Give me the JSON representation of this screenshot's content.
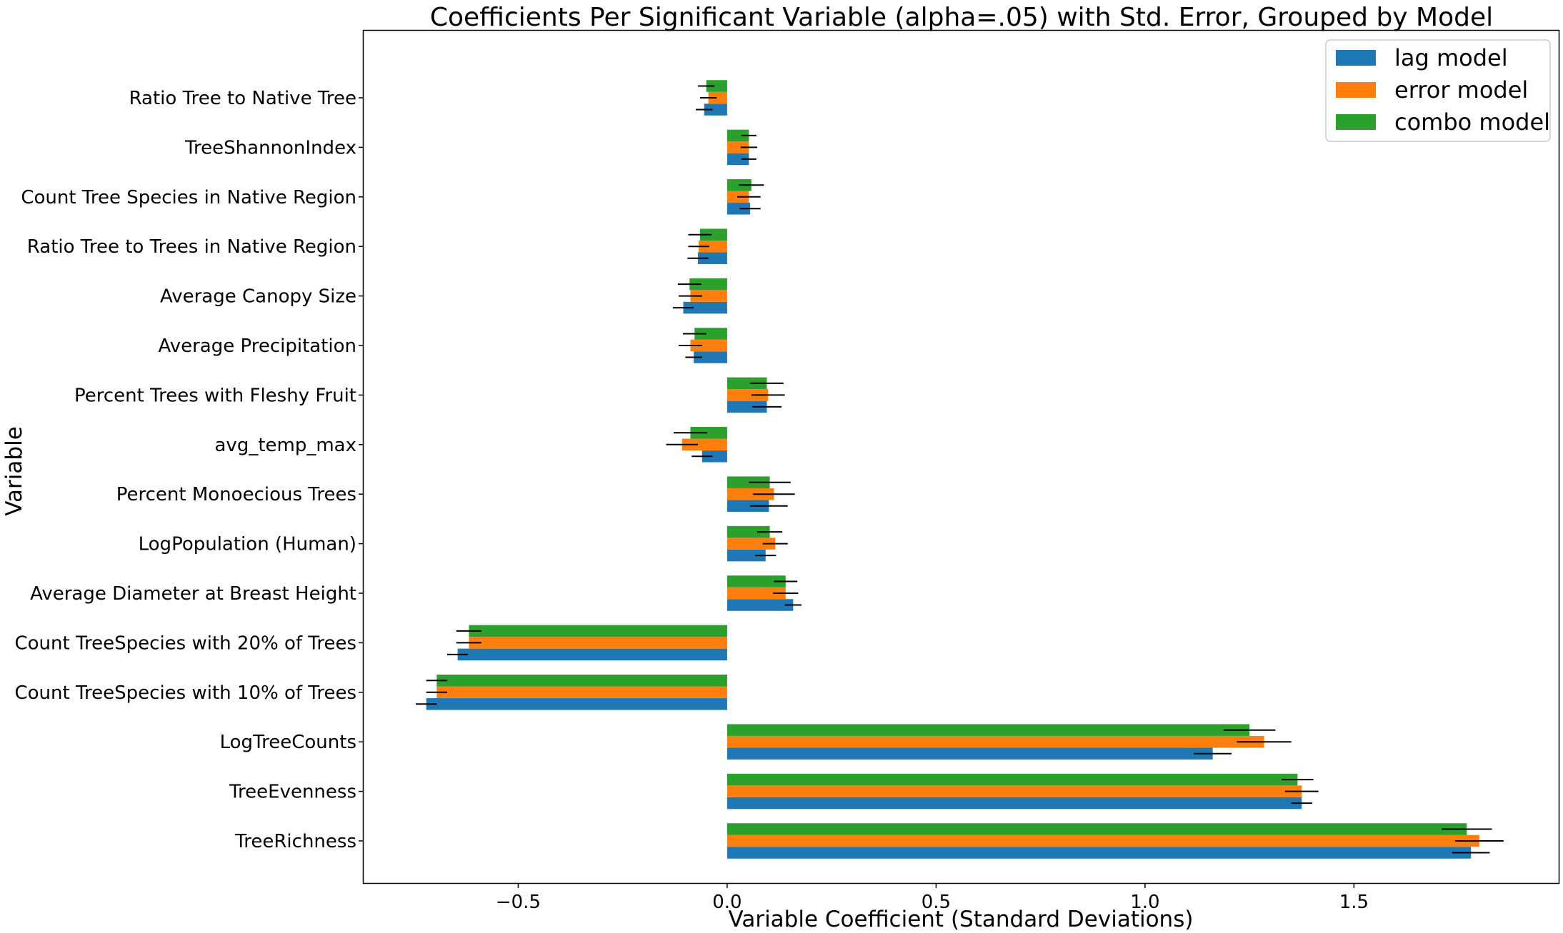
{
  "chart_data": {
    "type": "bar",
    "orientation": "horizontal",
    "title": "Coefficients Per Significant Variable (alpha=.05) with Std. Error, Grouped by Model",
    "xlabel": "Variable Coefficient (Standard Deviations)",
    "ylabel": "Variable",
    "xlim": [
      -0.87,
      1.99
    ],
    "xticks": [
      -0.5,
      0.0,
      0.5,
      1.0,
      1.5
    ],
    "xtick_labels": [
      "−0.5",
      "0.0",
      "0.5",
      "1.0",
      "1.5"
    ],
    "grid": false,
    "legend_position": "top-right",
    "categories": [
      "Ratio Tree to Native Tree",
      "TreeShannonIndex",
      "Count Tree Species in Native Region",
      "Ratio Tree to Trees in Native Region",
      "Average Canopy Size",
      "Average Precipitation",
      "Percent Trees with Fleshy Fruit",
      "avg_temp_max",
      "Percent Monoecious Trees",
      "LogPopulation (Human)",
      "Average Diameter at Breast Height",
      "Count TreeSpecies with 20% of Trees",
      "Count TreeSpecies with 10% of Trees",
      "LogTreeCounts",
      "TreeEvenness",
      "TreeRichness"
    ],
    "series": [
      {
        "name": "lag model",
        "color": "#1f77b4",
        "values": [
          -0.055,
          0.052,
          0.055,
          -0.07,
          -0.105,
          -0.08,
          0.095,
          -0.06,
          0.1,
          0.092,
          0.158,
          -0.645,
          -0.72,
          1.162,
          1.375,
          1.78
        ],
        "errors": [
          0.02,
          0.018,
          0.025,
          0.025,
          0.025,
          0.02,
          0.035,
          0.025,
          0.045,
          0.025,
          0.02,
          0.025,
          0.025,
          0.045,
          0.025,
          0.045
        ]
      },
      {
        "name": "error model",
        "color": "#ff7f0e",
        "values": [
          -0.045,
          0.052,
          0.052,
          -0.068,
          -0.088,
          -0.088,
          0.098,
          -0.108,
          0.112,
          0.115,
          0.14,
          -0.618,
          -0.695,
          1.285,
          1.375,
          1.8
        ],
        "errors": [
          0.02,
          0.02,
          0.028,
          0.025,
          0.028,
          0.028,
          0.04,
          0.038,
          0.05,
          0.03,
          0.03,
          0.03,
          0.025,
          0.065,
          0.04,
          0.058
        ]
      },
      {
        "name": "combo model",
        "color": "#2ca02c",
        "values": [
          -0.05,
          0.052,
          0.058,
          -0.065,
          -0.09,
          -0.078,
          0.095,
          -0.088,
          0.102,
          0.102,
          0.14,
          -0.618,
          -0.695,
          1.25,
          1.365,
          1.77
        ],
        "errors": [
          0.02,
          0.018,
          0.03,
          0.028,
          0.028,
          0.028,
          0.04,
          0.04,
          0.05,
          0.03,
          0.028,
          0.03,
          0.025,
          0.062,
          0.038,
          0.06
        ]
      }
    ]
  }
}
